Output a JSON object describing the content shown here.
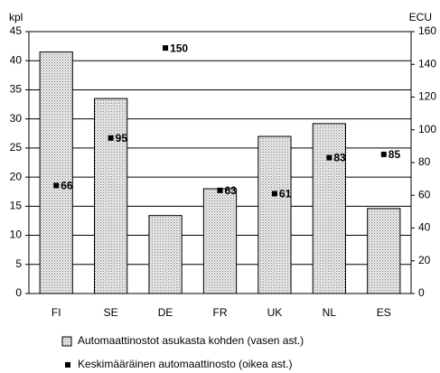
{
  "chart_data": {
    "type": "bar",
    "categories": [
      "FI",
      "SE",
      "DE",
      "FR",
      "UK",
      "NL",
      "ES"
    ],
    "series": [
      {
        "name": "Automaattinostot asukasta kohden (vasen ast.)",
        "color": "#d4d4d4",
        "values": [
          41.5,
          33.5,
          13.4,
          18,
          27,
          29.2,
          14.6
        ]
      },
      {
        "name": "Keskimääräinen automaattinosto (oikea ast.)",
        "color": "#000000",
        "values": [
          66,
          95,
          150,
          63,
          61,
          83,
          85
        ],
        "axis": "y2"
      }
    ],
    "ylabel": "kpl",
    "y2label": "ECU",
    "ylim": [
      0,
      45
    ],
    "yticks": [
      0,
      5,
      10,
      15,
      20,
      25,
      30,
      35,
      40,
      45
    ],
    "y2lim": [
      0,
      160
    ],
    "y2ticks": [
      0,
      20,
      40,
      60,
      80,
      100,
      120,
      140,
      160
    ],
    "grid": true
  }
}
